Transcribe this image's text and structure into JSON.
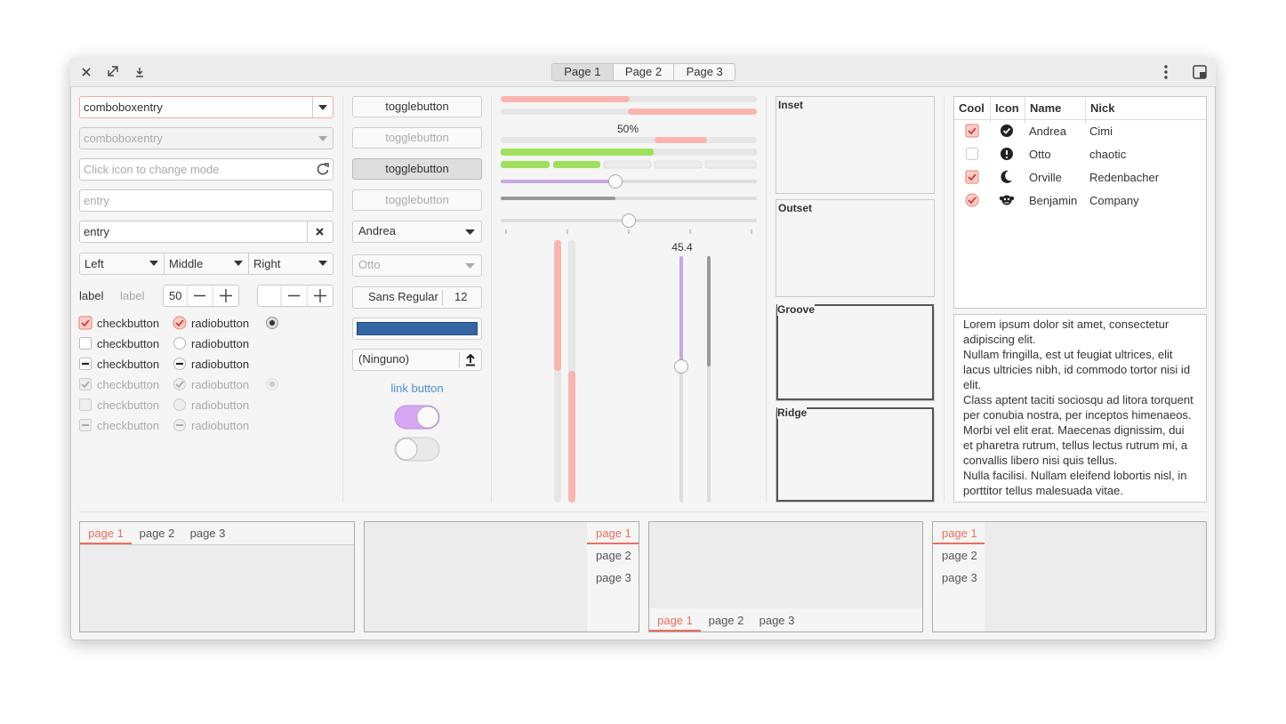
{
  "header": {
    "tabs": [
      "Page 1",
      "Page 2",
      "Page 3"
    ]
  },
  "column1": {
    "combo_entries": [
      "comboboxentry",
      "comboboxentry"
    ],
    "entry_icon_placeholder": "Click icon to change mode",
    "entry_placeholder": "entry",
    "entry_text": "entry",
    "segmented": [
      "Left",
      "Middle",
      "Right"
    ],
    "labels": [
      "label",
      "label"
    ],
    "spin": "50",
    "checkbuttons": [
      "checkbutton",
      "checkbutton",
      "checkbutton",
      "checkbutton",
      "checkbutton",
      "checkbutton"
    ],
    "radiobuttons": [
      "radiobutton",
      "radiobutton",
      "radiobutton",
      "radiobutton",
      "radiobutton",
      "radiobutton"
    ]
  },
  "column2": {
    "togglebuttons": [
      "togglebutton",
      "togglebutton",
      "togglebutton",
      "togglebutton"
    ],
    "combos": [
      "Andrea",
      "Otto"
    ],
    "font_name": "Sans Regular",
    "font_size": "12",
    "file": "(Ninguno)",
    "link": "link button"
  },
  "column3": {
    "progress_label": "50%",
    "scale_value": "45.4"
  },
  "frames": [
    "Inset",
    "Outset",
    "Groove",
    "Ridge"
  ],
  "tree": {
    "columns": [
      "Cool",
      "Icon",
      "Name",
      "Nick"
    ],
    "rows": [
      {
        "name": "Andrea",
        "nick": "Cimi"
      },
      {
        "name": "Otto",
        "nick": "chaotic"
      },
      {
        "name": "Orville",
        "nick": "Redenbacher"
      },
      {
        "name": "Benjamin",
        "nick": "Company"
      }
    ]
  },
  "text_view": [
    "Lorem ipsum dolor sit amet, consectetur adipiscing elit.",
    "Nullam fringilla, est ut feugiat ultrices, elit lacus ultricies nibh, id commodo tortor nisi id elit.",
    "Class aptent taciti sociosqu ad litora torquent per conubia nostra, per inceptos himenaeos.",
    "Morbi vel elit erat. Maecenas dignissim, dui et pharetra rutrum, tellus lectus rutrum mi, a convallis libero nisi quis tellus.",
    "Nulla facilisi. Nullam eleifend lobortis nisl, in porttitor tellus malesuada vitae."
  ],
  "notebooks": [
    {
      "tabs": [
        "page 1",
        "page 2",
        "page 3"
      ]
    },
    {
      "tabs": [
        "page 1",
        "page 2",
        "page 3"
      ]
    },
    {
      "tabs": [
        "page 1",
        "page 2",
        "page 3"
      ]
    },
    {
      "tabs": [
        "page 1",
        "page 2",
        "page 3"
      ]
    }
  ]
}
